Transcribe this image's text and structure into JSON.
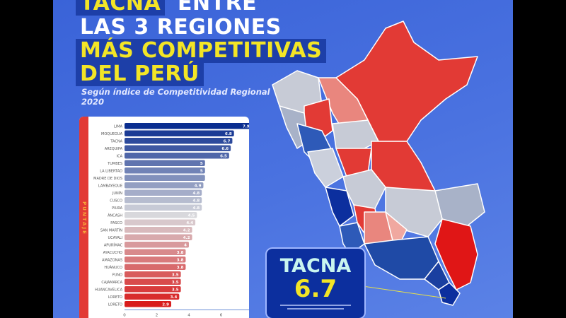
{
  "header": {
    "line1_highlight": "TACNA",
    "line1_rest": "ENTRE",
    "line2": "LAS 3 REGIONES",
    "line3": "MÁS COMPETITIVAS",
    "line4": "DEL PERÚ",
    "subtitle": "Según índice de Competitividad Regional 2020"
  },
  "callout": {
    "region": "TACNA",
    "score": "6.7"
  },
  "colors": {
    "background": "#4a72e0",
    "highlight": "#f3e526",
    "high": "#0a2d8f",
    "mid": "#d8d8dc",
    "low": "#d81c1c"
  },
  "chart_data": {
    "type": "bar",
    "orientation": "horizontal",
    "ylabel": "PUNTAJE",
    "xlim": [
      0,
      8
    ],
    "xticks": [
      "0",
      "2",
      "4",
      "6",
      "8"
    ],
    "categories": [
      "LIMA",
      "MOQUEGUA",
      "TACNA",
      "AREQUIPA",
      "ICA",
      "TUMBES",
      "LA LIBERTAD",
      "MADRE DE DIOS",
      "LAMBAYEQUE",
      "JUNÍN",
      "CUSCO",
      "PIURA",
      "ÁNCASH",
      "PASCO",
      "SAN MARTÍN",
      "UCAYALI",
      "APURÍMAC",
      "AYACUCHO",
      "AMAZONAS",
      "HUÁNUCO",
      "PUNO",
      "CAJAMARCA",
      "HUANCAVELICA",
      "LORETO",
      "LORETO"
    ],
    "values": [
      7.9,
      6.8,
      6.7,
      6.6,
      6.5,
      5,
      5,
      5,
      4.9,
      4.8,
      4.8,
      4.8,
      4.5,
      4.4,
      4.2,
      4.2,
      4,
      3.8,
      3.8,
      3.8,
      3.5,
      3.5,
      3.5,
      3.4,
      2.9
    ],
    "value_labels": [
      "7.9",
      "6.8",
      "6.7",
      "6.6",
      "6.5",
      "5",
      "5",
      "",
      "4.9",
      "4.8",
      "4.8",
      "4.8",
      "4.5",
      "4.4",
      "4.2",
      "4.2",
      "4",
      "3.8",
      "3.8",
      "3.8",
      "3.5",
      "3.5",
      "3.5",
      "3.4",
      "2.9"
    ],
    "grid": false
  }
}
